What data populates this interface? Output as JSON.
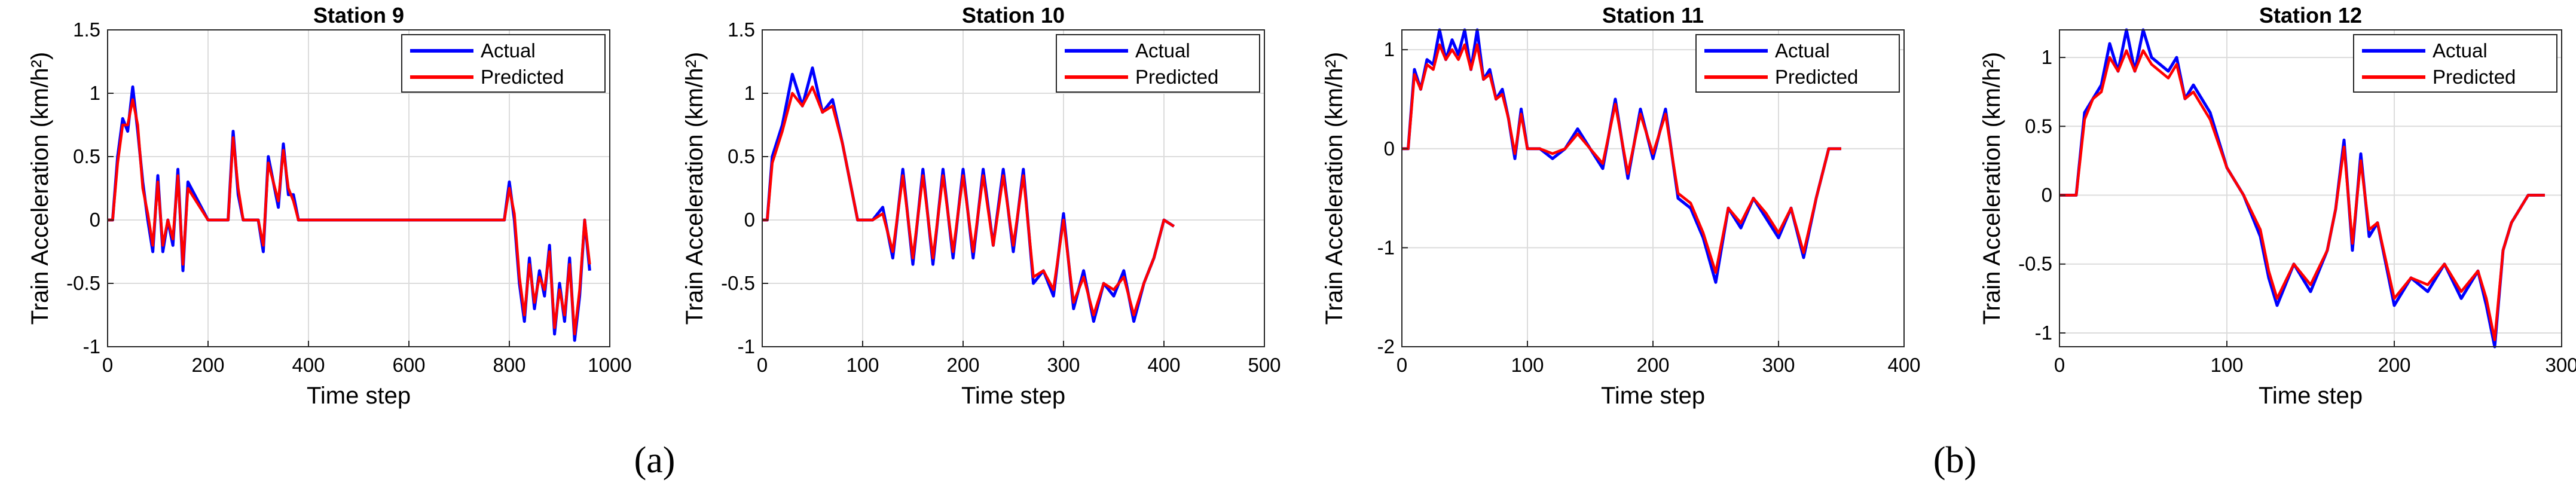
{
  "panel_labels": [
    "(a)",
    "(b)"
  ],
  "chart_data": [
    {
      "type": "line",
      "title": "Station 9",
      "xlabel": "Time step",
      "ylabel": "Train Acceleration (km/h²)",
      "xlim": [
        0,
        1000
      ],
      "ylim": [
        -1,
        1.5
      ],
      "xticks": [
        0,
        200,
        400,
        600,
        800,
        1000
      ],
      "xtick_labels": [
        "0",
        "200",
        "400",
        "600",
        "800",
        "1000"
      ],
      "yticks": [
        -1,
        -0.5,
        0,
        0.5,
        1,
        1.5
      ],
      "ytick_labels": [
        "-1",
        "-0.5",
        "0",
        "0.5",
        "1",
        "1.5"
      ],
      "grid": true,
      "legend_position": "top-right",
      "series": [
        {
          "name": "Actual",
          "color": "#0000ff",
          "x": [
            0,
            10,
            20,
            30,
            40,
            50,
            60,
            70,
            80,
            90,
            100,
            110,
            120,
            130,
            140,
            150,
            160,
            200,
            240,
            250,
            260,
            270,
            300,
            310,
            320,
            340,
            350,
            360,
            370,
            380,
            400,
            500,
            600,
            700,
            790,
            800,
            810,
            820,
            830,
            840,
            850,
            860,
            870,
            880,
            890,
            900,
            910,
            920,
            930,
            940,
            950,
            960
          ],
          "y": [
            0,
            0,
            0.5,
            0.8,
            0.7,
            1.05,
            0.7,
            0.3,
            0,
            -0.25,
            0.35,
            -0.25,
            0,
            -0.2,
            0.4,
            -0.4,
            0.3,
            0,
            0,
            0.7,
            0.2,
            0,
            0,
            -0.25,
            0.5,
            0.1,
            0.6,
            0.2,
            0.2,
            0,
            0,
            0,
            0,
            0,
            0,
            0.3,
            0,
            -0.5,
            -0.8,
            -0.3,
            -0.7,
            -0.4,
            -0.6,
            -0.2,
            -0.9,
            -0.5,
            -0.8,
            -0.3,
            -0.95,
            -0.6,
            0,
            -0.4
          ]
        },
        {
          "name": "Predicted",
          "color": "#ff0000",
          "x": [
            0,
            10,
            20,
            30,
            40,
            50,
            60,
            70,
            80,
            90,
            100,
            110,
            120,
            130,
            140,
            150,
            160,
            200,
            240,
            250,
            260,
            270,
            300,
            310,
            320,
            340,
            350,
            360,
            370,
            380,
            400,
            500,
            600,
            700,
            790,
            800,
            810,
            820,
            830,
            840,
            850,
            860,
            870,
            880,
            890,
            900,
            910,
            920,
            930,
            940,
            950,
            960
          ],
          "y": [
            0,
            0,
            0.45,
            0.75,
            0.75,
            0.95,
            0.75,
            0.25,
            0.05,
            -0.2,
            0.3,
            -0.2,
            0,
            -0.15,
            0.35,
            -0.35,
            0.25,
            0,
            0,
            0.65,
            0.25,
            0,
            0,
            -0.2,
            0.45,
            0.15,
            0.55,
            0.25,
            0.15,
            0,
            0,
            0,
            0,
            0,
            0,
            0.25,
            0.05,
            -0.45,
            -0.75,
            -0.35,
            -0.65,
            -0.45,
            -0.55,
            -0.25,
            -0.85,
            -0.55,
            -0.75,
            -0.35,
            -0.9,
            -0.55,
            0,
            -0.35
          ]
        }
      ]
    },
    {
      "type": "line",
      "title": "Station 10",
      "xlabel": "Time step",
      "ylabel": "Train Acceleration (km/h²)",
      "xlim": [
        0,
        500
      ],
      "ylim": [
        -1,
        1.5
      ],
      "xticks": [
        0,
        100,
        200,
        300,
        400,
        500
      ],
      "xtick_labels": [
        "0",
        "100",
        "200",
        "300",
        "400",
        "500"
      ],
      "yticks": [
        -1,
        -0.5,
        0,
        0.5,
        1,
        1.5
      ],
      "ytick_labels": [
        "-1",
        "-0.5",
        "0",
        "0.5",
        "1",
        "1.5"
      ],
      "grid": true,
      "legend_position": "top-right",
      "series": [
        {
          "name": "Actual",
          "color": "#0000ff",
          "x": [
            0,
            5,
            10,
            20,
            30,
            40,
            50,
            60,
            70,
            80,
            90,
            95,
            100,
            110,
            120,
            130,
            140,
            150,
            160,
            170,
            180,
            190,
            200,
            210,
            220,
            230,
            240,
            250,
            260,
            270,
            280,
            290,
            300,
            310,
            320,
            330,
            340,
            350,
            360,
            370,
            380,
            390,
            400,
            410
          ],
          "y": [
            0,
            0,
            0.5,
            0.75,
            1.15,
            0.9,
            1.2,
            0.85,
            0.95,
            0.6,
            0.2,
            0,
            0,
            0,
            0.1,
            -0.3,
            0.4,
            -0.35,
            0.4,
            -0.35,
            0.4,
            -0.3,
            0.4,
            -0.3,
            0.4,
            -0.2,
            0.4,
            -0.25,
            0.4,
            -0.5,
            -0.4,
            -0.6,
            0.05,
            -0.7,
            -0.4,
            -0.8,
            -0.5,
            -0.6,
            -0.4,
            -0.8,
            -0.5,
            -0.3,
            0,
            -0.05
          ]
        },
        {
          "name": "Predicted",
          "color": "#ff0000",
          "x": [
            0,
            5,
            10,
            20,
            30,
            40,
            50,
            60,
            70,
            80,
            90,
            95,
            100,
            110,
            120,
            130,
            140,
            150,
            160,
            170,
            180,
            190,
            200,
            210,
            220,
            230,
            240,
            250,
            260,
            270,
            280,
            290,
            300,
            310,
            320,
            330,
            340,
            350,
            360,
            370,
            380,
            390,
            400,
            410
          ],
          "y": [
            0,
            0,
            0.45,
            0.7,
            1.0,
            0.9,
            1.05,
            0.85,
            0.9,
            0.6,
            0.2,
            0,
            0,
            0,
            0.05,
            -0.25,
            0.35,
            -0.3,
            0.35,
            -0.3,
            0.35,
            -0.25,
            0.35,
            -0.25,
            0.35,
            -0.2,
            0.35,
            -0.2,
            0.35,
            -0.45,
            -0.4,
            -0.55,
            0,
            -0.65,
            -0.45,
            -0.75,
            -0.5,
            -0.55,
            -0.45,
            -0.75,
            -0.5,
            -0.3,
            0,
            -0.05
          ]
        }
      ]
    },
    {
      "type": "line",
      "title": "Station 11",
      "xlabel": "Time step",
      "ylabel": "Train Acceleration (km/h²)",
      "xlim": [
        0,
        400
      ],
      "ylim": [
        -2,
        1.2
      ],
      "xticks": [
        0,
        100,
        200,
        300,
        400
      ],
      "xtick_labels": [
        "0",
        "100",
        "200",
        "300",
        "400"
      ],
      "yticks": [
        -2,
        -1,
        0,
        1
      ],
      "ytick_labels": [
        "-2",
        "-1",
        "0",
        "1"
      ],
      "grid": true,
      "legend_position": "top-right",
      "series": [
        {
          "name": "Actual",
          "color": "#0000ff",
          "x": [
            0,
            5,
            10,
            15,
            20,
            25,
            30,
            35,
            40,
            45,
            50,
            55,
            60,
            65,
            70,
            75,
            80,
            85,
            90,
            95,
            100,
            110,
            120,
            130,
            140,
            150,
            160,
            170,
            180,
            190,
            200,
            210,
            220,
            230,
            240,
            250,
            260,
            270,
            280,
            290,
            300,
            310,
            320,
            330,
            340,
            350
          ],
          "y": [
            0,
            0,
            0.8,
            0.6,
            0.9,
            0.85,
            1.2,
            0.9,
            1.1,
            0.95,
            1.2,
            0.8,
            1.2,
            0.7,
            0.8,
            0.5,
            0.6,
            0.3,
            -0.1,
            0.4,
            0,
            0,
            -0.1,
            0,
            0.2,
            0,
            -0.2,
            0.5,
            -0.3,
            0.4,
            -0.1,
            0.4,
            -0.5,
            -0.6,
            -0.9,
            -1.35,
            -0.6,
            -0.8,
            -0.5,
            -0.7,
            -0.9,
            -0.6,
            -1.1,
            -0.5,
            0,
            0
          ]
        },
        {
          "name": "Predicted",
          "color": "#ff0000",
          "x": [
            0,
            5,
            10,
            15,
            20,
            25,
            30,
            35,
            40,
            45,
            50,
            55,
            60,
            65,
            70,
            75,
            80,
            85,
            90,
            95,
            100,
            110,
            120,
            130,
            140,
            150,
            160,
            170,
            180,
            190,
            200,
            210,
            220,
            230,
            240,
            250,
            260,
            270,
            280,
            290,
            300,
            310,
            320,
            330,
            340,
            350
          ],
          "y": [
            0,
            0,
            0.75,
            0.6,
            0.85,
            0.8,
            1.05,
            0.9,
            1.0,
            0.9,
            1.05,
            0.8,
            1.05,
            0.7,
            0.75,
            0.5,
            0.55,
            0.3,
            -0.05,
            0.35,
            0,
            0,
            -0.05,
            0,
            0.15,
            0,
            -0.15,
            0.45,
            -0.25,
            0.35,
            -0.05,
            0.35,
            -0.45,
            -0.55,
            -0.85,
            -1.25,
            -0.6,
            -0.75,
            -0.5,
            -0.65,
            -0.85,
            -0.6,
            -1.05,
            -0.5,
            0,
            0
          ]
        }
      ]
    },
    {
      "type": "line",
      "title": "Station 12",
      "xlabel": "Time step",
      "ylabel": "Train Acceleration (km/h²)",
      "xlim": [
        0,
        300
      ],
      "ylim": [
        -1.1,
        1.2
      ],
      "xticks": [
        0,
        100,
        200,
        300
      ],
      "xtick_labels": [
        "0",
        "100",
        "200",
        "300"
      ],
      "yticks": [
        -1,
        -0.5,
        0,
        0.5,
        1
      ],
      "ytick_labels": [
        "-1",
        "-0.5",
        "0",
        "0.5",
        "1"
      ],
      "grid": true,
      "legend_position": "top-right",
      "series": [
        {
          "name": "Actual",
          "color": "#0000ff",
          "x": [
            0,
            10,
            15,
            20,
            25,
            30,
            35,
            40,
            45,
            50,
            55,
            60,
            65,
            70,
            75,
            80,
            90,
            100,
            110,
            120,
            125,
            130,
            140,
            150,
            160,
            165,
            170,
            175,
            180,
            185,
            190,
            200,
            210,
            220,
            230,
            240,
            250,
            255,
            260,
            265,
            270,
            280,
            290
          ],
          "y": [
            0,
            0,
            0.6,
            0.7,
            0.8,
            1.1,
            0.9,
            1.2,
            0.9,
            1.2,
            1.0,
            0.95,
            0.9,
            1.0,
            0.7,
            0.8,
            0.6,
            0.2,
            0,
            -0.3,
            -0.6,
            -0.8,
            -0.5,
            -0.7,
            -0.4,
            -0.1,
            0.4,
            -0.4,
            0.3,
            -0.3,
            -0.2,
            -0.8,
            -0.6,
            -0.7,
            -0.5,
            -0.75,
            -0.55,
            -0.8,
            -1.1,
            -0.4,
            -0.2,
            0,
            0
          ]
        },
        {
          "name": "Predicted",
          "color": "#ff0000",
          "x": [
            0,
            10,
            15,
            20,
            25,
            30,
            35,
            40,
            45,
            50,
            55,
            60,
            65,
            70,
            75,
            80,
            90,
            100,
            110,
            120,
            125,
            130,
            140,
            150,
            160,
            165,
            170,
            175,
            180,
            185,
            190,
            200,
            210,
            220,
            230,
            240,
            250,
            255,
            260,
            265,
            270,
            280,
            290
          ],
          "y": [
            0,
            0,
            0.55,
            0.7,
            0.75,
            1.0,
            0.9,
            1.05,
            0.9,
            1.05,
            0.95,
            0.9,
            0.85,
            0.95,
            0.7,
            0.75,
            0.55,
            0.2,
            0,
            -0.25,
            -0.55,
            -0.75,
            -0.5,
            -0.65,
            -0.4,
            -0.1,
            0.35,
            -0.35,
            0.25,
            -0.25,
            -0.2,
            -0.75,
            -0.6,
            -0.65,
            -0.5,
            -0.7,
            -0.55,
            -0.75,
            -1.05,
            -0.4,
            -0.2,
            0,
            0
          ]
        }
      ]
    }
  ]
}
